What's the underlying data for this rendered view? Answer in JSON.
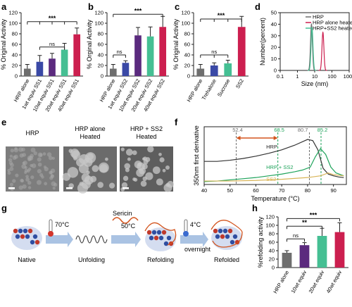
{
  "panel_labels": {
    "a": "a",
    "b": "b",
    "c": "c",
    "d": "d",
    "e": "e",
    "f": "f",
    "g": "g",
    "h": "h"
  },
  "colors": {
    "grey": "#6e6e6e",
    "blue": "#3a49a6",
    "purple": "#5b2a7e",
    "teal": "#45bf93",
    "crimson": "#cc1f4f",
    "orange": "#d3541d",
    "green_dash": "#1ea35a",
    "gold": "#d8b457"
  },
  "chart_data": [
    {
      "panel": "a",
      "type": "bar",
      "ylabel": "% Original Activity",
      "ylim": [
        0,
        120
      ],
      "yticks": [
        0,
        20,
        40,
        60,
        80,
        100,
        120
      ],
      "categories": [
        "HRP alone",
        "1wt equiv SS1",
        "10wt equiv SS1",
        "20wt equiv SS1",
        "40wt equiv SS1"
      ],
      "values": [
        14,
        27,
        33,
        50,
        79
      ],
      "errors": [
        8,
        12,
        10,
        12,
        12
      ],
      "significance": [
        "ns",
        "***"
      ]
    },
    {
      "panel": "b",
      "type": "bar",
      "ylabel": "% Orginal Activity",
      "ylim": [
        0,
        120
      ],
      "yticks": [
        0,
        20,
        40,
        60,
        80,
        100,
        120
      ],
      "categories": [
        "HRP alone",
        "1wt equiv SS2",
        "10wt equiv SS2",
        "20wt equiv SS2",
        "40wt equiv SS2"
      ],
      "values": [
        14,
        25,
        77,
        75,
        93
      ],
      "errors": [
        8,
        4,
        15,
        18,
        20
      ],
      "significance": [
        "ns",
        "***"
      ]
    },
    {
      "panel": "c",
      "type": "bar",
      "ylabel": "% Original Activity",
      "ylim": [
        0,
        120
      ],
      "yticks": [
        0,
        20,
        40,
        60,
        80,
        100,
        120
      ],
      "categories": [
        "HRP alone",
        "Trehalose",
        "Sucrose",
        "SS2"
      ],
      "values": [
        14,
        20,
        24,
        93
      ],
      "errors": [
        8,
        5,
        6,
        20
      ],
      "significance": [
        "ns",
        "***"
      ]
    },
    {
      "panel": "d",
      "type": "line",
      "ylabel": "Number(percent)",
      "xlabel": "Size (nm)",
      "xscale": "log",
      "xticks": [
        "0.1",
        "1",
        "10",
        "100",
        "1000"
      ],
      "ylim": [
        0,
        50
      ],
      "yticks": [
        0,
        10,
        20,
        30,
        40,
        50
      ],
      "legend_position": "top-right",
      "series": [
        {
          "name": "HRP",
          "peak_x": 6.5,
          "peak_y": 40
        },
        {
          "name": "HRP alone heated",
          "peak_x": 30,
          "peak_y": 33
        },
        {
          "name": "HRP+SS2 heated",
          "peak_x": 7,
          "peak_y": 37
        }
      ]
    },
    {
      "panel": "f",
      "type": "line",
      "ylabel": "350nm first derivative",
      "xlabel": "Temperature (°C)",
      "xlim": [
        40,
        95
      ],
      "xticks": [
        40,
        50,
        60,
        70,
        80,
        90
      ],
      "markers": [
        {
          "label": "52.4",
          "x": 52.4
        },
        {
          "label": "68.5",
          "x": 68.5
        },
        {
          "label": "80.7",
          "x": 80.7
        },
        {
          "label": "85.2",
          "x": 85.2
        }
      ],
      "series": [
        {
          "name": "HRP",
          "x": [
            40,
            45,
            50,
            55,
            60,
            65,
            70,
            75,
            80,
            82,
            84,
            86,
            88,
            90,
            92,
            94
          ],
          "y": [
            0.4,
            0.4,
            0.42,
            0.45,
            0.49,
            0.54,
            0.6,
            0.68,
            0.78,
            0.76,
            0.6,
            0.28,
            0.18,
            0.15,
            0.13,
            0.12
          ]
        },
        {
          "name": "HRP + SS2",
          "x": [
            40,
            45,
            50,
            55,
            60,
            65,
            70,
            75,
            78,
            81,
            83,
            85,
            87,
            89,
            91,
            94
          ],
          "y": [
            0.05,
            0.06,
            0.08,
            0.1,
            0.12,
            0.15,
            0.18,
            0.22,
            0.25,
            0.3,
            0.48,
            0.62,
            0.52,
            0.3,
            0.2,
            0.15
          ]
        },
        {
          "name": "SS2",
          "x": [
            40,
            50,
            60,
            70,
            80,
            85,
            88,
            90,
            94
          ],
          "y": [
            0.06,
            0.06,
            0.07,
            0.09,
            0.12,
            0.15,
            0.2,
            0.17,
            0.15
          ]
        }
      ]
    },
    {
      "panel": "h",
      "type": "bar",
      "ylabel": "%refolding  activity",
      "ylim": [
        0,
        120
      ],
      "yticks": [
        0,
        20,
        40,
        60,
        80,
        100,
        120
      ],
      "categories": [
        "HRP alone",
        "10wt equiv",
        "20wt equiv",
        "40wt equiv"
      ],
      "values": [
        35,
        53,
        75,
        84
      ],
      "errors": [
        5,
        6,
        18,
        22
      ],
      "significance": [
        "ns",
        "**",
        "***"
      ]
    }
  ],
  "panel_e": {
    "titles": [
      "HRP",
      "HRP alone\nHeated",
      "HRP + SS2\nHeated"
    ]
  },
  "panel_g": {
    "labels": [
      "Native",
      "Unfolding",
      "Refolding",
      "Refolded"
    ],
    "step_texts": [
      "70°C",
      "Sericin",
      "50°C",
      "4°C",
      "overnight"
    ]
  }
}
